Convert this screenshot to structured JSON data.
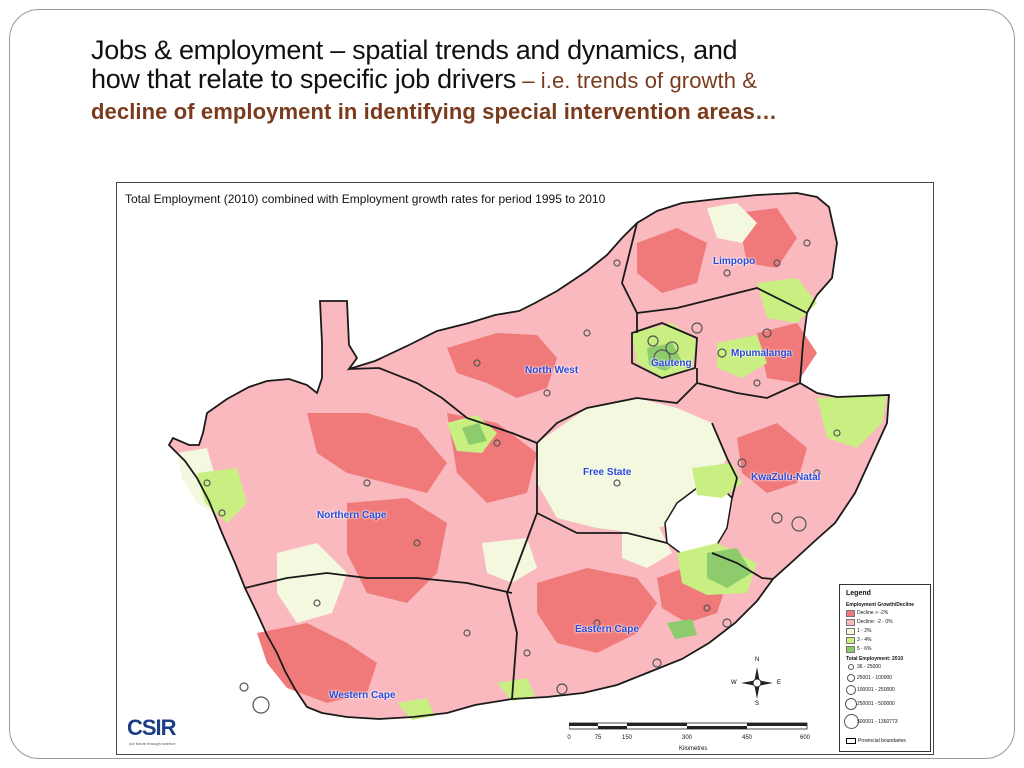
{
  "slide": {
    "title_line1": "Jobs & employment – spatial trends and dynamics, and",
    "title_line2": "how that relate to specific job drivers",
    "title_line2_sub": " – i.e. trends of growth &",
    "title_line3": "decline of employment in identifying special intervention areas…"
  },
  "map": {
    "title": "Total Employment (2010) combined with Employment growth rates for period 1995 to 2010",
    "provinces": [
      {
        "name": "Limpopo"
      },
      {
        "name": "Mpumalanga"
      },
      {
        "name": "Gauteng"
      },
      {
        "name": "North West"
      },
      {
        "name": "Free State"
      },
      {
        "name": "KwaZulu-Natal"
      },
      {
        "name": "Northern Cape"
      },
      {
        "name": "Eastern Cape"
      },
      {
        "name": "Western Cape"
      }
    ],
    "legend": {
      "title": "Legend",
      "growth_heading": "Employment Growth/Decline",
      "growth_items": [
        {
          "label": "Decline > -2%",
          "color": "#f07a7a"
        },
        {
          "label": "Decline: -2 - 0%",
          "color": "#f9b9bf"
        },
        {
          "label": "1 - 2%",
          "color": "#f3f8df"
        },
        {
          "label": "3 - 4%",
          "color": "#c9ef82"
        },
        {
          "label": "5 - 6%",
          "color": "#8ecb6c"
        }
      ],
      "total_heading": "Total Employment: 2010",
      "total_items": [
        {
          "label": "36 - 25000"
        },
        {
          "label": "25001 - 100000"
        },
        {
          "label": "100001 - 250000"
        },
        {
          "label": "250001 - 500000"
        },
        {
          "label": "500001 - 1360773"
        }
      ],
      "boundary_label": "Provincial boundaries"
    },
    "scale": {
      "ticks": [
        "0",
        "75",
        "150",
        "300",
        "450",
        "600"
      ],
      "unit": "Kilometres"
    },
    "compass": {
      "n": "N",
      "s": "S",
      "e": "E",
      "w": "W"
    },
    "logo": {
      "text": "CSIR",
      "tagline": "our future through science"
    },
    "colors": {
      "decline_high": "#f07a7a",
      "decline_low": "#f9b9bf",
      "growth_low": "#f3f8df",
      "growth_mid": "#c9ef82",
      "growth_high": "#8ecb6c",
      "province_border": "#1a1a1a",
      "label_blue": "#2b49d8"
    }
  }
}
